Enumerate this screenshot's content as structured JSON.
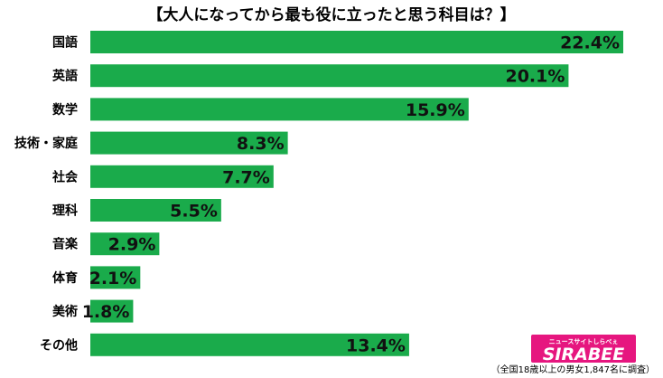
{
  "chart_data": {
    "type": "bar",
    "orientation": "horizontal",
    "title": "【大人になってから最も役に立ったと思う科目は？】",
    "categories": [
      "国語",
      "英語",
      "数学",
      "技術・家庭",
      "社会",
      "理科",
      "音楽",
      "体育",
      "美術",
      "その他"
    ],
    "values": [
      22.4,
      20.1,
      15.9,
      8.3,
      7.7,
      5.5,
      2.9,
      2.1,
      1.8,
      13.4
    ],
    "value_labels": [
      "22.4%",
      "20.1%",
      "15.9%",
      "8.3%",
      "7.7%",
      "5.5%",
      "2.9%",
      "2.1%",
      "1.8%",
      "13.4%"
    ],
    "xlim": [
      0,
      22.4
    ],
    "grid": false,
    "bar_color": "#1aab4b"
  },
  "footnote": "（全国18歳以上の男女1,847名に調査）",
  "logo": {
    "sub": "ニュースサイトしらべぇ",
    "main": "SIRABEE",
    "color": "#e6167f"
  }
}
